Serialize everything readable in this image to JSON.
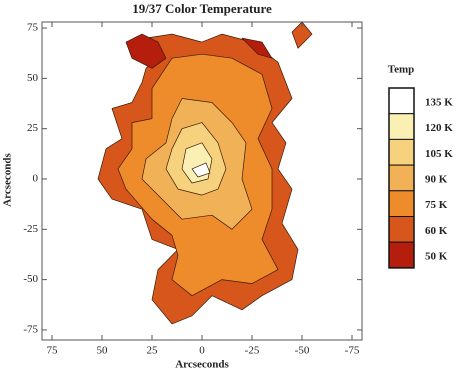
{
  "chart_data": {
    "type": "contour",
    "title": "19/37 Color Temperature",
    "x_label": "Arcseconds",
    "y_label": "Arcseconds",
    "xlim": [
      80,
      -80
    ],
    "ylim": [
      -80,
      78
    ],
    "xticks": [
      75,
      50,
      25,
      0,
      -25,
      -50,
      -75
    ],
    "yticks": [
      75,
      50,
      25,
      0,
      -25,
      -50,
      -75
    ],
    "legend": {
      "title": "Temp",
      "levels": [
        {
          "value": 135,
          "label": "135 K"
        },
        {
          "value": 120,
          "label": "120 K"
        },
        {
          "value": 105,
          "label": "105 K"
        },
        {
          "value": 90,
          "label": "90 K"
        },
        {
          "value": 75,
          "label": "75 K"
        },
        {
          "value": 60,
          "label": "60 K"
        },
        {
          "value": 50,
          "label": "50 K"
        }
      ],
      "colors": [
        "#ffffff",
        "#fbf0b4",
        "#f6d17e",
        "#f1b257",
        "#ee8c2c",
        "#d6561b",
        "#b51d0c"
      ]
    },
    "regions": [
      {
        "level": 60,
        "x": [
          20,
          28,
          15,
          0,
          -10,
          -25,
          -38,
          -45,
          -35,
          -42,
          -38,
          -45,
          -40,
          -48,
          -45,
          -30,
          -20,
          -5,
          5,
          15,
          25,
          22,
          12,
          25,
          30,
          45,
          52,
          48,
          40,
          45,
          35,
          30,
          28
        ],
        "y": [
          62,
          70,
          72,
          68,
          72,
          68,
          58,
          40,
          28,
          18,
          5,
          -5,
          -22,
          -35,
          -50,
          -58,
          -65,
          -58,
          -68,
          -72,
          -60,
          -45,
          -35,
          -30,
          -15,
          -10,
          0,
          15,
          20,
          35,
          38,
          48,
          55
        ]
      },
      {
        "level": 60,
        "x": [
          -45,
          -50,
          -55,
          -48
        ],
        "y": [
          73,
          78,
          72,
          65
        ]
      },
      {
        "level": 75,
        "x": [
          15,
          0,
          -15,
          -30,
          -35,
          -28,
          -35,
          -35,
          -30,
          -38,
          -25,
          -10,
          5,
          15,
          12,
          15,
          25,
          38,
          42,
          35,
          35,
          25,
          25
        ],
        "y": [
          60,
          62,
          60,
          52,
          35,
          20,
          5,
          -15,
          -30,
          -45,
          -52,
          -50,
          -58,
          -50,
          -38,
          -28,
          -20,
          -5,
          5,
          15,
          28,
          30,
          45
        ]
      },
      {
        "level": 90,
        "x": [
          10,
          -5,
          -15,
          -22,
          -20,
          -25,
          -15,
          -5,
          10,
          20,
          30,
          28,
          18,
          15
        ],
        "y": [
          40,
          38,
          28,
          18,
          0,
          -15,
          -25,
          -18,
          -20,
          -10,
          0,
          10,
          18,
          30
        ]
      },
      {
        "level": 105,
        "x": [
          10,
          0,
          -8,
          -12,
          -8,
          0,
          12,
          18,
          15
        ],
        "y": [
          25,
          28,
          18,
          5,
          -5,
          -8,
          -5,
          5,
          15
        ]
      },
      {
        "level": 120,
        "x": [
          8,
          0,
          -5,
          -3,
          5,
          10
        ],
        "y": [
          15,
          18,
          10,
          0,
          -2,
          5
        ]
      },
      {
        "level": 135,
        "x": [
          5,
          -2,
          -4,
          2
        ],
        "y": [
          5,
          8,
          3,
          1
        ]
      },
      {
        "level": 50,
        "x": [
          25,
          35,
          38,
          30,
          22,
          18
        ],
        "y": [
          55,
          60,
          68,
          72,
          68,
          60
        ]
      },
      {
        "level": 50,
        "x": [
          -20,
          -30,
          -35,
          -28
        ],
        "y": [
          70,
          68,
          60,
          62
        ]
      }
    ]
  }
}
